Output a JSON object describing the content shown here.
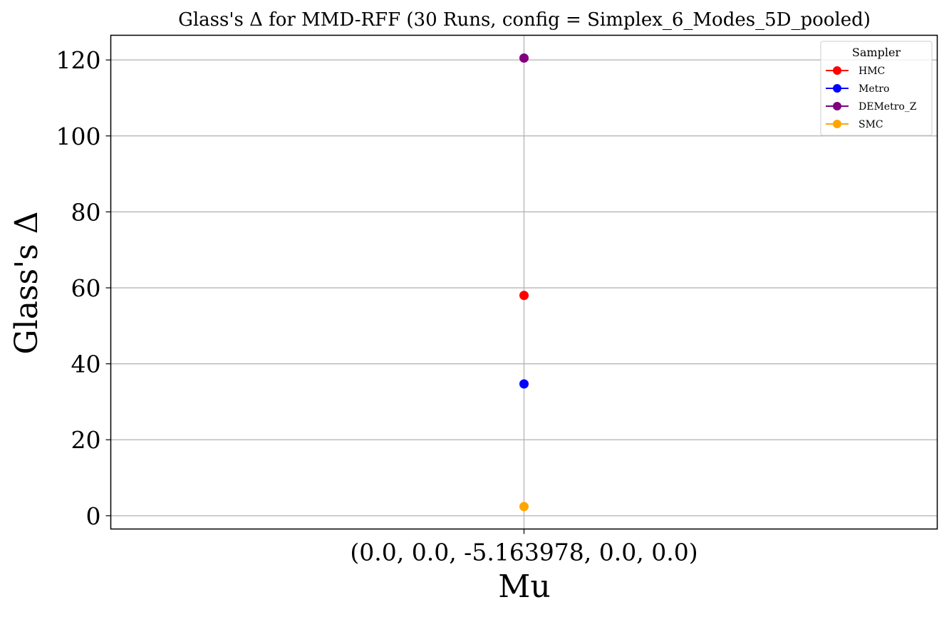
{
  "chart_data": {
    "type": "scatter",
    "title": "Glass's Δ for MMD-RFF (30 Runs, config = Simplex_6_Modes_5D_pooled)",
    "xlabel": "Mu",
    "ylabel": "Glass's Δ",
    "categories": [
      "(0.0, 0.0, -5.163978, 0.0, 0.0)"
    ],
    "ylim": [
      -3.5,
      126.5
    ],
    "yticks": [
      0,
      20,
      40,
      60,
      80,
      100,
      120
    ],
    "grid": true,
    "legend": {
      "title": "Sampler",
      "placement": "top-right"
    },
    "series": [
      {
        "name": "HMC",
        "color": "#ff0000",
        "values": [
          58.0
        ]
      },
      {
        "name": "Metro",
        "color": "#0000ff",
        "values": [
          34.7
        ]
      },
      {
        "name": "DEMetro_Z",
        "color": "#800080",
        "values": [
          120.5
        ]
      },
      {
        "name": "SMC",
        "color": "#ffa500",
        "values": [
          2.4
        ]
      }
    ]
  }
}
